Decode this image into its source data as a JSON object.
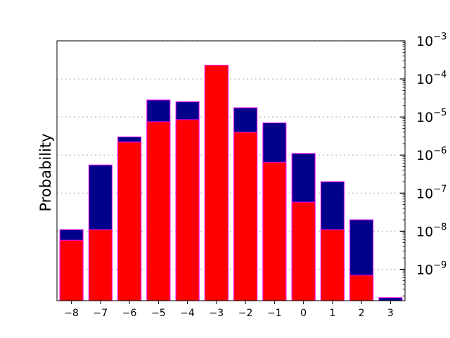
{
  "chart_data": {
    "type": "bar",
    "title": "",
    "xlabel": "",
    "ylabel": "Probability",
    "yscale": "log",
    "ylim": [
      1.5e-10,
      0.001
    ],
    "xlim": [
      -8.5,
      3.5
    ],
    "grid": "horizontal dotted at major y ticks",
    "y_tick_position": "right",
    "x": [
      -8,
      -7,
      -6,
      -5,
      -4,
      -3,
      -2,
      -1,
      0,
      1,
      2,
      3
    ],
    "x_tick_labels": [
      "−8",
      "−7",
      "−6",
      "−5",
      "−4",
      "−3",
      "−2",
      "−1",
      "0",
      "1",
      "2",
      "3"
    ],
    "y_ticks": [
      {
        "value": 1e-09,
        "base": "10",
        "exp": "−9"
      },
      {
        "value": 1e-08,
        "base": "10",
        "exp": "−8"
      },
      {
        "value": 1e-07,
        "base": "10",
        "exp": "−7"
      },
      {
        "value": 1e-06,
        "base": "10",
        "exp": "−6"
      },
      {
        "value": 1e-05,
        "base": "10",
        "exp": "−5"
      },
      {
        "value": 0.0001,
        "base": "10",
        "exp": "−4"
      },
      {
        "value": 0.001,
        "base": "10",
        "exp": "−3"
      }
    ],
    "series": [
      {
        "color": "#00008b",
        "edgecolor": "#ff00ff",
        "values": [
          1.1e-08,
          5.5e-07,
          3e-06,
          2.8e-05,
          2.5e-05,
          0.00023,
          1.75e-05,
          7e-06,
          1.1e-06,
          2e-07,
          2e-08,
          1.8e-10
        ]
      },
      {
        "color": "#ff0000",
        "edgecolor": "#ff00ff",
        "values": [
          5.8e-09,
          1.1e-08,
          2.2e-06,
          7.5e-06,
          8.5e-06,
          0.00023,
          4e-06,
          6.5e-07,
          5.8e-08,
          1.1e-08,
          7e-10,
          null
        ]
      }
    ]
  }
}
